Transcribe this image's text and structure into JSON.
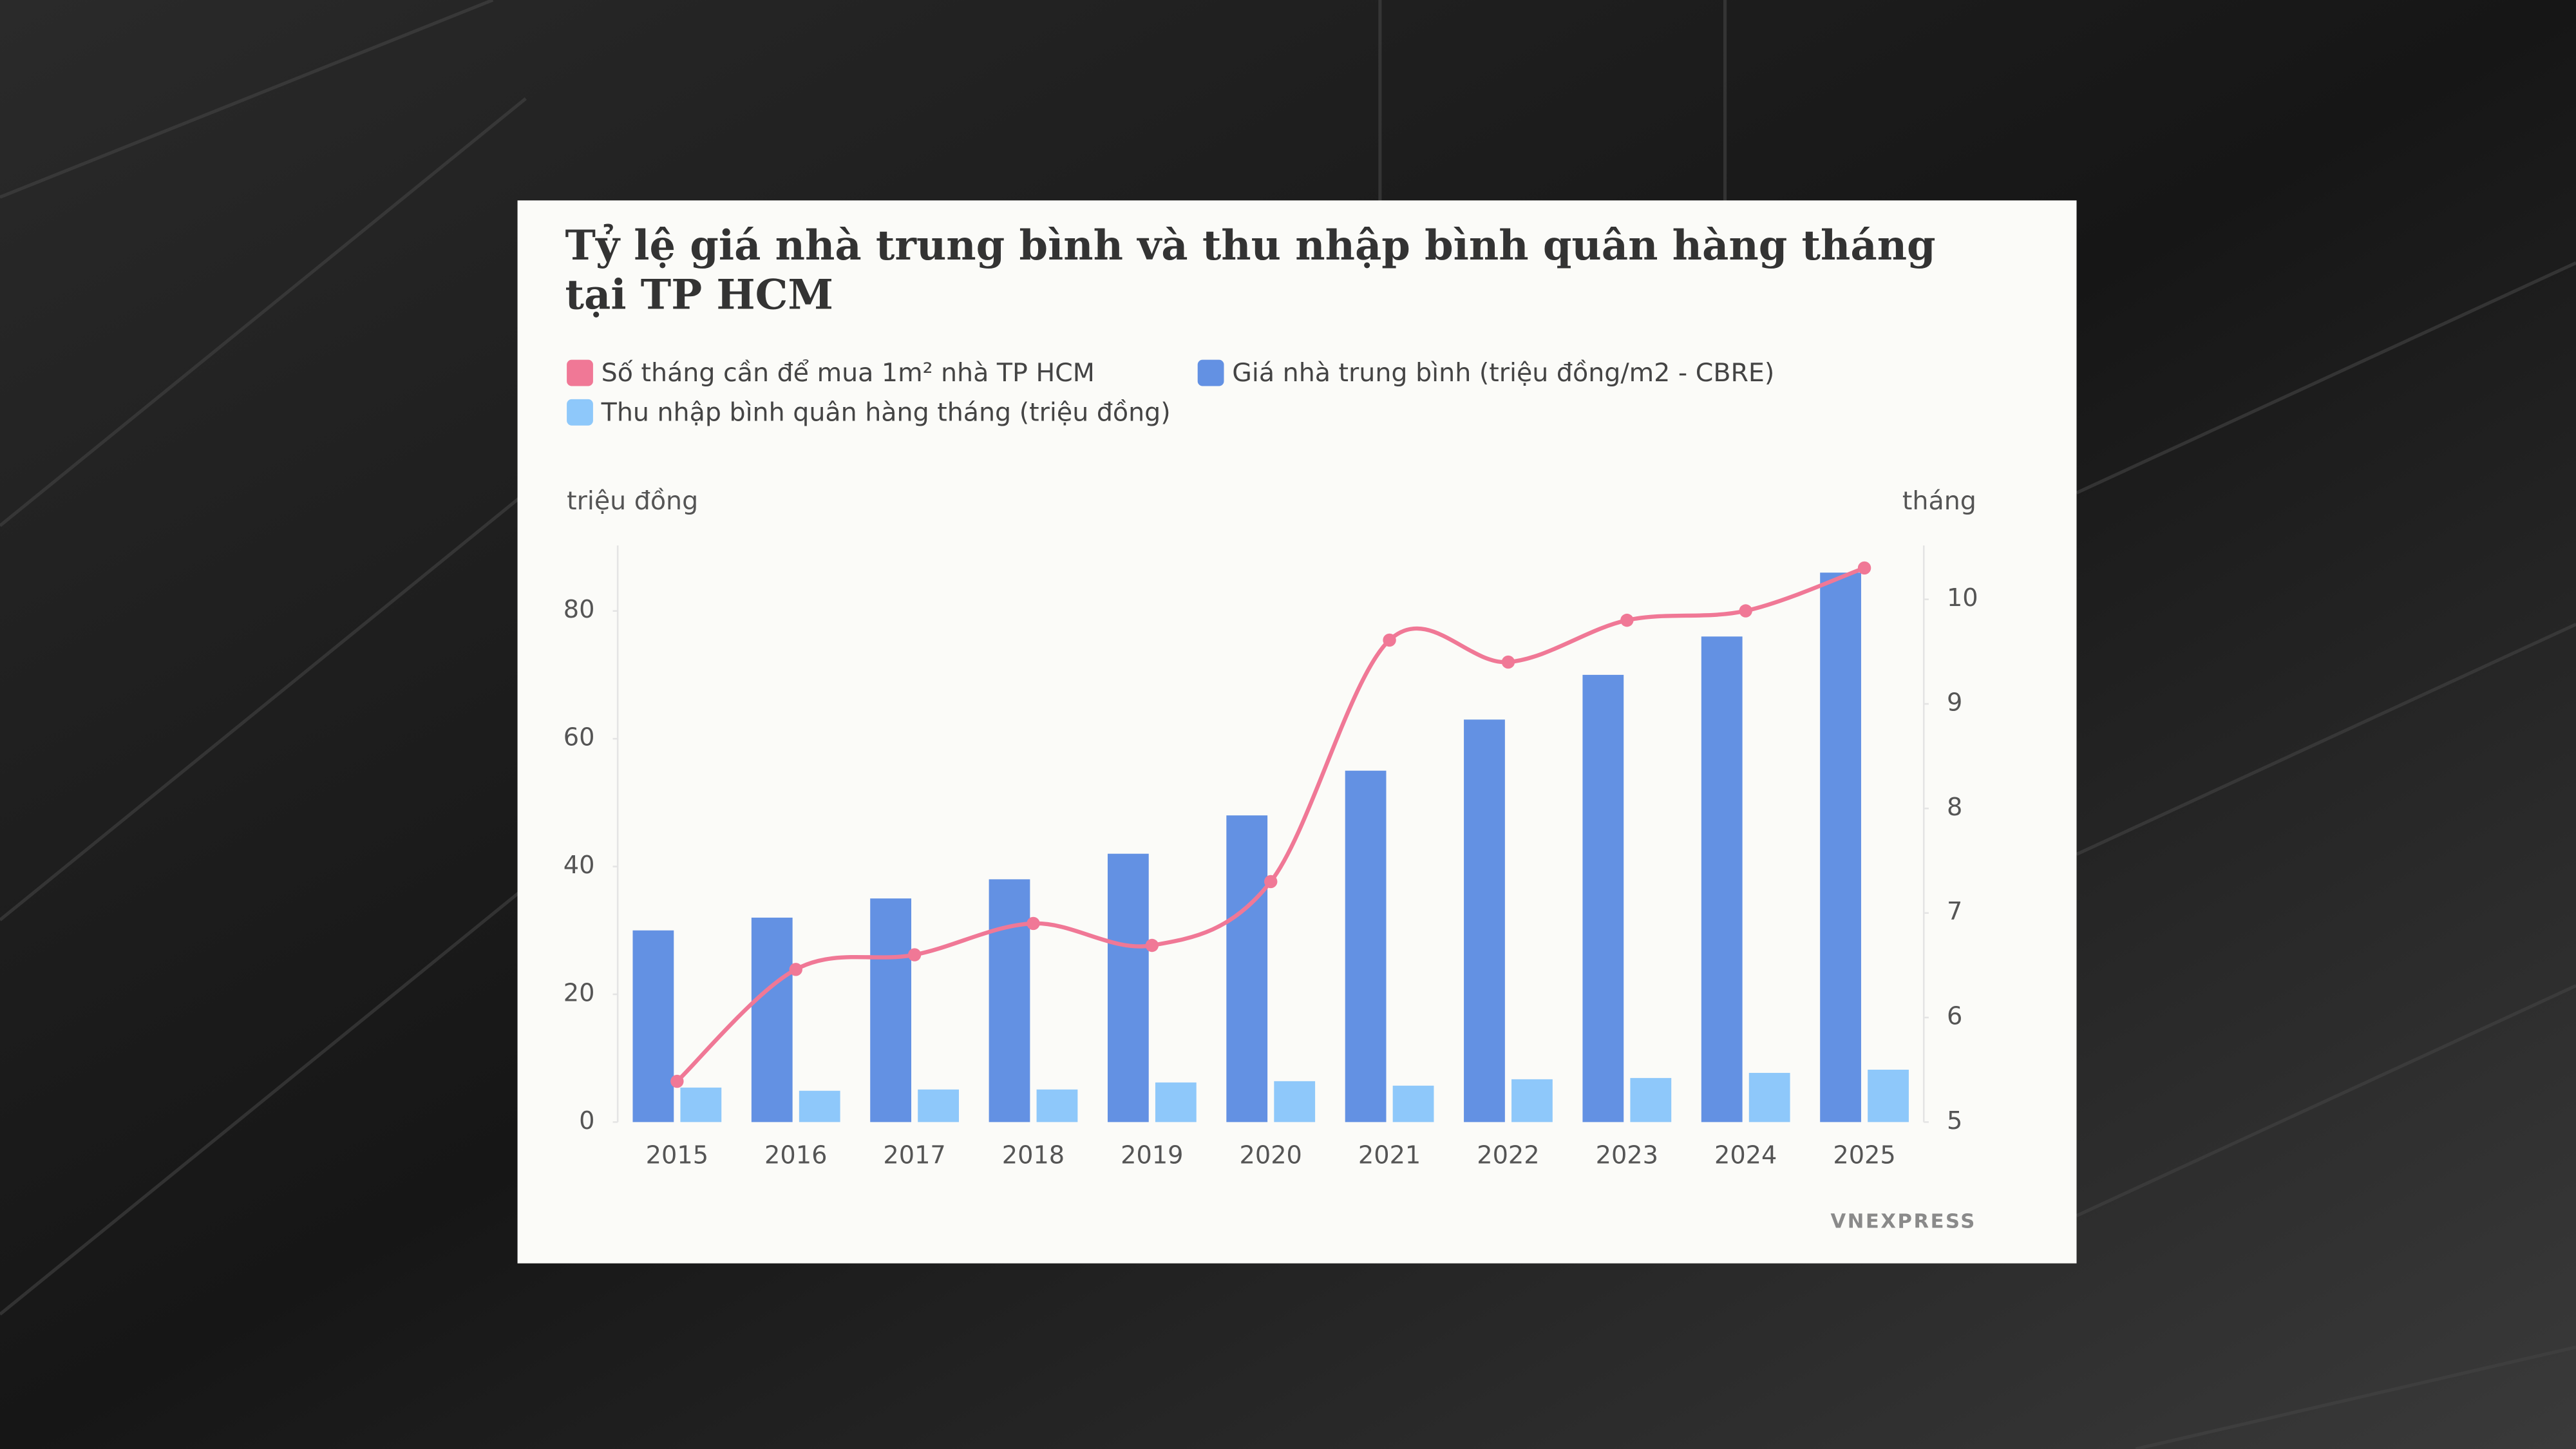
{
  "chart_data": {
    "type": "bar",
    "title": "Tỷ lệ giá nhà trung bình và thu nhập bình quân hàng tháng tại TP HCM",
    "y_label": "triệu đồng",
    "y2_label": "tháng",
    "logo": "VNEXPRESS",
    "legend": "top-left",
    "grid": false,
    "categories": [
      "2015",
      "2016",
      "2017",
      "2018",
      "2019",
      "2020",
      "2021",
      "2022",
      "2023",
      "2024",
      "2025"
    ],
    "series": [
      {
        "name": "Số tháng cần để mua 1m² nhà TP HCM",
        "color": "#f07896",
        "type": "line",
        "axis": "y2",
        "values": [
          5.39,
          6.46,
          6.6,
          6.9,
          6.69,
          7.3,
          9.61,
          9.4,
          9.8,
          9.89,
          10.3
        ]
      },
      {
        "name": "Giá nhà trung bình (triệu đồng/m2 - CBRE)",
        "color": "#6391e3",
        "values": [
          30,
          32,
          35,
          38,
          42,
          48,
          55,
          63,
          70,
          76,
          86
        ]
      },
      {
        "name": "Thu nhập bình quân hàng tháng (triệu đồng)",
        "color": "#8ec8fa",
        "values": [
          5.4,
          4.9,
          5.1,
          5.1,
          6.2,
          6.4,
          5.7,
          6.7,
          6.9,
          7.7,
          8.2
        ]
      }
    ],
    "ylim": [
      0,
      90
    ],
    "yticks": [
      0,
      20,
      40,
      60,
      80
    ],
    "y2lim": [
      5,
      10.5
    ],
    "y2ticks": [
      5,
      6,
      7,
      8,
      9,
      10
    ]
  }
}
